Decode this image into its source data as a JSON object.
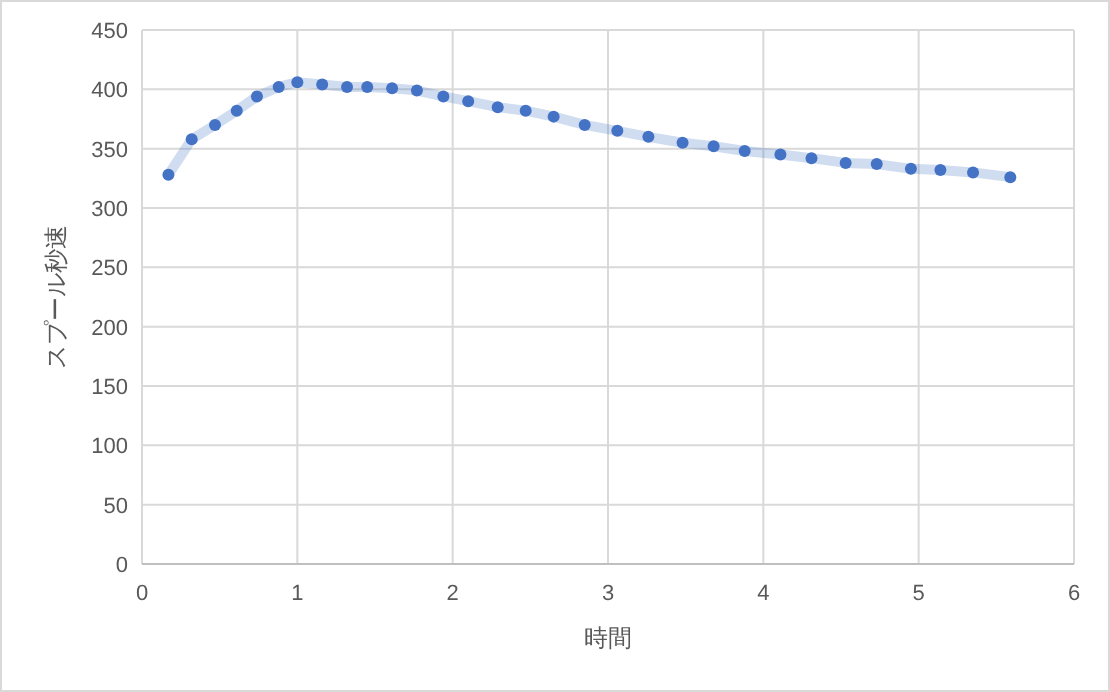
{
  "chart_data": {
    "type": "line",
    "xlabel": "時間",
    "ylabel": "スプール秒速",
    "xlim": [
      0,
      6
    ],
    "xticks": [
      0,
      1,
      2,
      3,
      4,
      5,
      6
    ],
    "ylim": [
      0,
      450
    ],
    "yticks": [
      0,
      50,
      100,
      150,
      200,
      250,
      300,
      350,
      400,
      450
    ],
    "grid": true,
    "marker": "circle",
    "line_style": "solid",
    "series": [
      {
        "color": "#4472c4",
        "x": [
          0.17,
          0.32,
          0.47,
          0.61,
          0.74,
          0.88,
          1.0,
          1.16,
          1.32,
          1.45,
          1.61,
          1.77,
          1.94,
          2.1,
          2.29,
          2.47,
          2.65,
          2.85,
          3.06,
          3.26,
          3.48,
          3.68,
          3.88,
          4.11,
          4.31,
          4.53,
          4.73,
          4.95,
          5.14,
          5.35,
          5.59
        ],
        "values": [
          328,
          358,
          370,
          382,
          394,
          402,
          406,
          404,
          402,
          402,
          401,
          399,
          394,
          390,
          385,
          382,
          377,
          370,
          365,
          360,
          355,
          352,
          348,
          345,
          342,
          338,
          337,
          333,
          332,
          330,
          326
        ]
      }
    ]
  }
}
